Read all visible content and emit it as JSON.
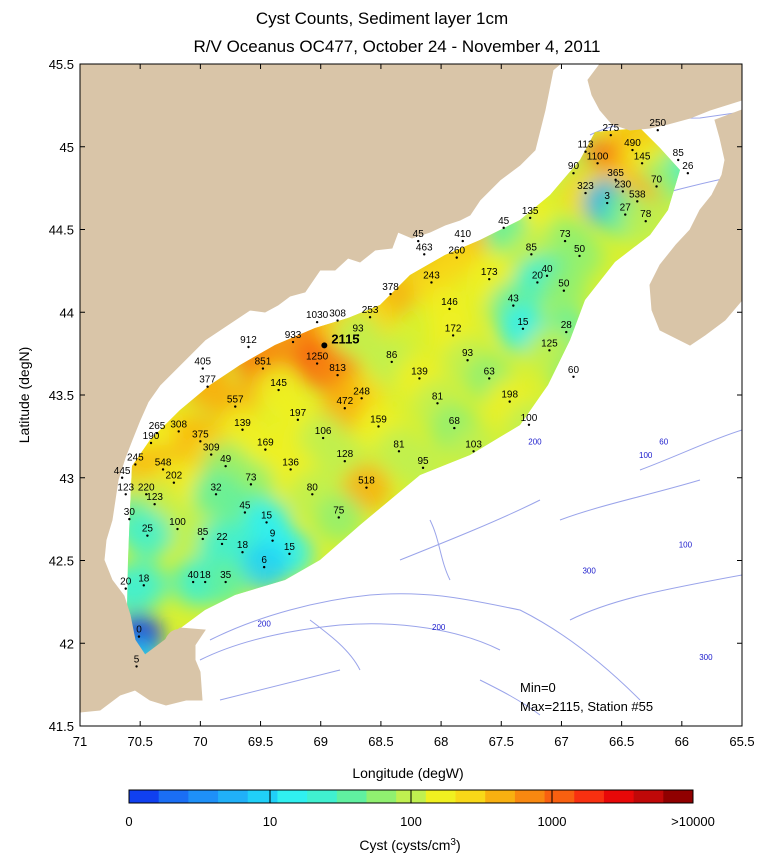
{
  "title_line1": "Cyst Counts, Sediment layer 1cm",
  "title_line2": "R/V Oceanus OC477, October 24 - November 4, 2011",
  "xlabel": "Longitude (degW)",
  "ylabel": "Latitude (degN)",
  "x_ticks": [
    "71",
    "70.5",
    "70",
    "69.5",
    "69",
    "68.5",
    "68",
    "67.5",
    "67",
    "66.5",
    "66",
    "65.5"
  ],
  "y_ticks": [
    "45.5",
    "45",
    "44.5",
    "44",
    "43.5",
    "43",
    "42.5",
    "42",
    "41.5"
  ],
  "stats": {
    "min": "Min=0",
    "max": "Max=2115, Station #55"
  },
  "colorbar": {
    "label": "Cyst (cysts/cm",
    "label_sup": "3",
    "label_end": ")",
    "ticks": [
      "0",
      "10",
      "100",
      "1000",
      ">10000"
    ],
    "colors": [
      "#1040f0",
      "#1a6ef5",
      "#1e90f8",
      "#20b0f8",
      "#20d0f8",
      "#30f0f0",
      "#40f0d0",
      "#60f0a0",
      "#90f070",
      "#c0f050",
      "#f0f020",
      "#f8d818",
      "#f8b010",
      "#f88810",
      "#f86010",
      "#f83010",
      "#e80808",
      "#c00808",
      "#900000"
    ]
  },
  "chart_data": {
    "type": "heatmap",
    "xlim": [
      71,
      65.5
    ],
    "ylim": [
      41.5,
      45.5
    ],
    "max_station": {
      "value": "2115",
      "lon": 68.97,
      "lat": 43.8
    },
    "contour_labels": [
      {
        "text": "60",
        "lon": 66.1,
        "lat": 45.15
      },
      {
        "text": "60",
        "lon": 66.15,
        "lat": 43.2
      },
      {
        "text": "100",
        "lon": 66.3,
        "lat": 43.12
      },
      {
        "text": "100",
        "lon": 65.97,
        "lat": 42.58
      },
      {
        "text": "200",
        "lon": 67.22,
        "lat": 43.2
      },
      {
        "text": "200",
        "lon": 69.47,
        "lat": 42.1
      },
      {
        "text": "200",
        "lon": 68.02,
        "lat": 42.08
      },
      {
        "text": "300",
        "lon": 66.77,
        "lat": 42.42
      },
      {
        "text": "300",
        "lon": 65.8,
        "lat": 41.9
      }
    ],
    "stations": [
      {
        "v": "275",
        "lon": 66.59,
        "lat": 45.07
      },
      {
        "v": "250",
        "lon": 66.2,
        "lat": 45.1
      },
      {
        "v": "113",
        "lon": 66.8,
        "lat": 44.97
      },
      {
        "v": "490",
        "lon": 66.41,
        "lat": 44.98
      },
      {
        "v": "1100",
        "lon": 66.7,
        "lat": 44.9
      },
      {
        "v": "145",
        "lon": 66.33,
        "lat": 44.9
      },
      {
        "v": "85",
        "lon": 66.03,
        "lat": 44.92
      },
      {
        "v": "90",
        "lon": 66.9,
        "lat": 44.84
      },
      {
        "v": "26",
        "lon": 65.95,
        "lat": 44.84
      },
      {
        "v": "365",
        "lon": 66.55,
        "lat": 44.8
      },
      {
        "v": "70",
        "lon": 66.21,
        "lat": 44.76
      },
      {
        "v": "323",
        "lon": 66.8,
        "lat": 44.72
      },
      {
        "v": "230",
        "lon": 66.49,
        "lat": 44.73
      },
      {
        "v": "3",
        "lon": 66.62,
        "lat": 44.66
      },
      {
        "v": "538",
        "lon": 66.37,
        "lat": 44.67
      },
      {
        "v": "27",
        "lon": 66.47,
        "lat": 44.59
      },
      {
        "v": "78",
        "lon": 66.3,
        "lat": 44.55
      },
      {
        "v": "135",
        "lon": 67.26,
        "lat": 44.57
      },
      {
        "v": "45",
        "lon": 67.48,
        "lat": 44.51
      },
      {
        "v": "73",
        "lon": 66.97,
        "lat": 44.43
      },
      {
        "v": "45",
        "lon": 68.19,
        "lat": 44.43
      },
      {
        "v": "410",
        "lon": 67.82,
        "lat": 44.43
      },
      {
        "v": "463",
        "lon": 68.14,
        "lat": 44.35
      },
      {
        "v": "260",
        "lon": 67.87,
        "lat": 44.33
      },
      {
        "v": "85",
        "lon": 67.25,
        "lat": 44.35
      },
      {
        "v": "50",
        "lon": 66.85,
        "lat": 44.34
      },
      {
        "v": "40",
        "lon": 67.12,
        "lat": 44.22
      },
      {
        "v": "173",
        "lon": 67.6,
        "lat": 44.2
      },
      {
        "v": "20",
        "lon": 67.2,
        "lat": 44.18
      },
      {
        "v": "243",
        "lon": 68.08,
        "lat": 44.18
      },
      {
        "v": "50",
        "lon": 66.98,
        "lat": 44.13
      },
      {
        "v": "378",
        "lon": 68.42,
        "lat": 44.11
      },
      {
        "v": "43",
        "lon": 67.4,
        "lat": 44.04
      },
      {
        "v": "146",
        "lon": 67.93,
        "lat": 44.02
      },
      {
        "v": "253",
        "lon": 68.59,
        "lat": 43.97
      },
      {
        "v": "1030",
        "lon": 69.03,
        "lat": 43.94
      },
      {
        "v": "308",
        "lon": 68.86,
        "lat": 43.95
      },
      {
        "v": "15",
        "lon": 67.32,
        "lat": 43.9
      },
      {
        "v": "28",
        "lon": 66.96,
        "lat": 43.88
      },
      {
        "v": "172",
        "lon": 67.9,
        "lat": 43.86
      },
      {
        "v": "93",
        "lon": 68.69,
        "lat": 43.86
      },
      {
        "v": "933",
        "lon": 69.23,
        "lat": 43.82
      },
      {
        "v": "912",
        "lon": 69.6,
        "lat": 43.79
      },
      {
        "v": "125",
        "lon": 67.1,
        "lat": 43.77
      },
      {
        "v": "86",
        "lon": 68.41,
        "lat": 43.7
      },
      {
        "v": "93",
        "lon": 67.78,
        "lat": 43.71
      },
      {
        "v": "1250",
        "lon": 69.03,
        "lat": 43.69
      },
      {
        "v": "851",
        "lon": 69.48,
        "lat": 43.66
      },
      {
        "v": "405",
        "lon": 69.98,
        "lat": 43.66
      },
      {
        "v": "813",
        "lon": 68.86,
        "lat": 43.62
      },
      {
        "v": "63",
        "lon": 67.6,
        "lat": 43.6
      },
      {
        "v": "60",
        "lon": 66.9,
        "lat": 43.61
      },
      {
        "v": "139",
        "lon": 68.18,
        "lat": 43.6
      },
      {
        "v": "377",
        "lon": 69.94,
        "lat": 43.55
      },
      {
        "v": "145",
        "lon": 69.35,
        "lat": 43.53
      },
      {
        "v": "248",
        "lon": 68.66,
        "lat": 43.48
      },
      {
        "v": "198",
        "lon": 67.43,
        "lat": 43.46
      },
      {
        "v": "81",
        "lon": 68.03,
        "lat": 43.45
      },
      {
        "v": "557",
        "lon": 69.71,
        "lat": 43.43
      },
      {
        "v": "472",
        "lon": 68.8,
        "lat": 43.42
      },
      {
        "v": "197",
        "lon": 69.19,
        "lat": 43.35
      },
      {
        "v": "159",
        "lon": 68.52,
        "lat": 43.31
      },
      {
        "v": "100",
        "lon": 67.27,
        "lat": 43.32
      },
      {
        "v": "68",
        "lon": 67.89,
        "lat": 43.3
      },
      {
        "v": "139",
        "lon": 69.65,
        "lat": 43.29
      },
      {
        "v": "308",
        "lon": 70.18,
        "lat": 43.28
      },
      {
        "v": "265",
        "lon": 70.36,
        "lat": 43.27
      },
      {
        "v": "106",
        "lon": 68.98,
        "lat": 43.24
      },
      {
        "v": "375",
        "lon": 70.0,
        "lat": 43.22
      },
      {
        "v": "190",
        "lon": 70.41,
        "lat": 43.21
      },
      {
        "v": "81",
        "lon": 68.35,
        "lat": 43.16
      },
      {
        "v": "103",
        "lon": 67.73,
        "lat": 43.16
      },
      {
        "v": "169",
        "lon": 69.46,
        "lat": 43.17
      },
      {
        "v": "309",
        "lon": 69.91,
        "lat": 43.14
      },
      {
        "v": "128",
        "lon": 68.8,
        "lat": 43.1
      },
      {
        "v": "95",
        "lon": 68.15,
        "lat": 43.06
      },
      {
        "v": "245",
        "lon": 70.54,
        "lat": 43.08
      },
      {
        "v": "548",
        "lon": 70.31,
        "lat": 43.05
      },
      {
        "v": "49",
        "lon": 69.79,
        "lat": 43.07
      },
      {
        "v": "136",
        "lon": 69.25,
        "lat": 43.05
      },
      {
        "v": "445",
        "lon": 70.65,
        "lat": 43.0
      },
      {
        "v": "202",
        "lon": 70.22,
        "lat": 42.97
      },
      {
        "v": "73",
        "lon": 69.58,
        "lat": 42.96
      },
      {
        "v": "518",
        "lon": 68.62,
        "lat": 42.94
      },
      {
        "v": "123",
        "lon": 70.62,
        "lat": 42.9
      },
      {
        "v": "220",
        "lon": 70.45,
        "lat": 42.9
      },
      {
        "v": "80",
        "lon": 69.07,
        "lat": 42.9
      },
      {
        "v": "32",
        "lon": 69.87,
        "lat": 42.9
      },
      {
        "v": "123",
        "lon": 70.38,
        "lat": 42.84
      },
      {
        "v": "45",
        "lon": 69.63,
        "lat": 42.79
      },
      {
        "v": "75",
        "lon": 68.85,
        "lat": 42.76
      },
      {
        "v": "30",
        "lon": 70.59,
        "lat": 42.75
      },
      {
        "v": "15",
        "lon": 69.45,
        "lat": 42.73
      },
      {
        "v": "100",
        "lon": 70.19,
        "lat": 42.69
      },
      {
        "v": "25",
        "lon": 70.44,
        "lat": 42.65
      },
      {
        "v": "85",
        "lon": 69.98,
        "lat": 42.63
      },
      {
        "v": "9",
        "lon": 69.4,
        "lat": 42.62
      },
      {
        "v": "22",
        "lon": 69.82,
        "lat": 42.6
      },
      {
        "v": "15",
        "lon": 69.26,
        "lat": 42.54
      },
      {
        "v": "18",
        "lon": 69.65,
        "lat": 42.55
      },
      {
        "v": "6",
        "lon": 69.47,
        "lat": 42.46
      },
      {
        "v": "40",
        "lon": 70.06,
        "lat": 42.37
      },
      {
        "v": "18",
        "lon": 69.96,
        "lat": 42.37
      },
      {
        "v": "35",
        "lon": 69.79,
        "lat": 42.37
      },
      {
        "v": "20",
        "lon": 70.62,
        "lat": 42.33
      },
      {
        "v": "18",
        "lon": 70.47,
        "lat": 42.35
      },
      {
        "v": "0",
        "lon": 70.51,
        "lat": 42.04
      },
      {
        "v": "5",
        "lon": 70.53,
        "lat": 41.86
      }
    ]
  }
}
